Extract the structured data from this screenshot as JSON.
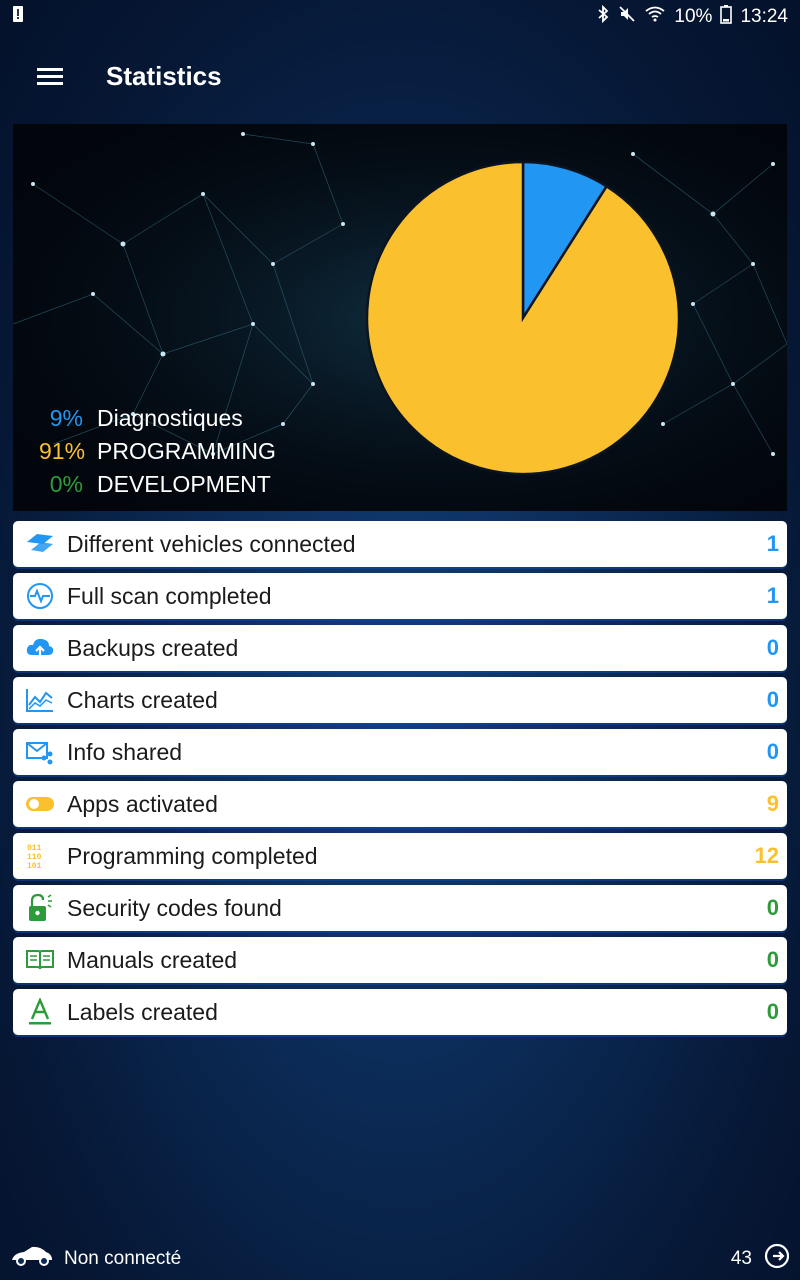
{
  "status_bar": {
    "battery": "10%",
    "time": "13:24"
  },
  "app_bar": {
    "title": "Statistics",
    "menu_icon": "hamburger-menu-icon"
  },
  "colors": {
    "blue": "#2196f3",
    "yellow": "#fbc02d",
    "green": "#2e9b3a"
  },
  "chart_data": {
    "type": "pie",
    "slices": [
      {
        "label": "Diagnostiques",
        "value": 9,
        "color": "#2196f3"
      },
      {
        "label": "PROGRAMMING",
        "value": 91,
        "color": "#fbc02d"
      },
      {
        "label": "DEVELOPMENT",
        "value": 0,
        "color": "#2e9b3a"
      }
    ]
  },
  "legend": [
    {
      "pct": "9%",
      "label": "Diagnostiques",
      "color": "#2196f3"
    },
    {
      "pct": "91%",
      "label": "PROGRAMMING",
      "color": "#fbc02d"
    },
    {
      "pct": "0%",
      "label": "DEVELOPMENT",
      "color": "#2e9b3a"
    }
  ],
  "stats": [
    {
      "icon": "vehicle-flag-icon",
      "label": "Different vehicles connected",
      "count": "1",
      "color": "#2196f3"
    },
    {
      "icon": "heartbeat-scan-icon",
      "label": "Full scan completed",
      "count": "1",
      "color": "#2196f3"
    },
    {
      "icon": "cloud-upload-icon",
      "label": "Backups created",
      "count": "0",
      "color": "#2196f3"
    },
    {
      "icon": "line-chart-icon",
      "label": "Charts created",
      "count": "0",
      "color": "#2196f3"
    },
    {
      "icon": "mail-share-icon",
      "label": "Info shared",
      "count": "0",
      "color": "#2196f3"
    },
    {
      "icon": "toggle-on-icon",
      "label": "Apps activated",
      "count": "9",
      "color": "#fbc02d"
    },
    {
      "icon": "binary-code-icon",
      "label": "Programming completed",
      "count": "12",
      "color": "#fbc02d"
    },
    {
      "icon": "unlock-icon",
      "label": "Security codes found",
      "count": "0",
      "color": "#2e9b3a"
    },
    {
      "icon": "manual-book-icon",
      "label": "Manuals created",
      "count": "0",
      "color": "#2e9b3a"
    },
    {
      "icon": "letter-a-label-icon",
      "label": "Labels created",
      "count": "0",
      "color": "#2e9b3a"
    }
  ],
  "bottom_bar": {
    "connection": "Non connecté",
    "number": "43"
  }
}
